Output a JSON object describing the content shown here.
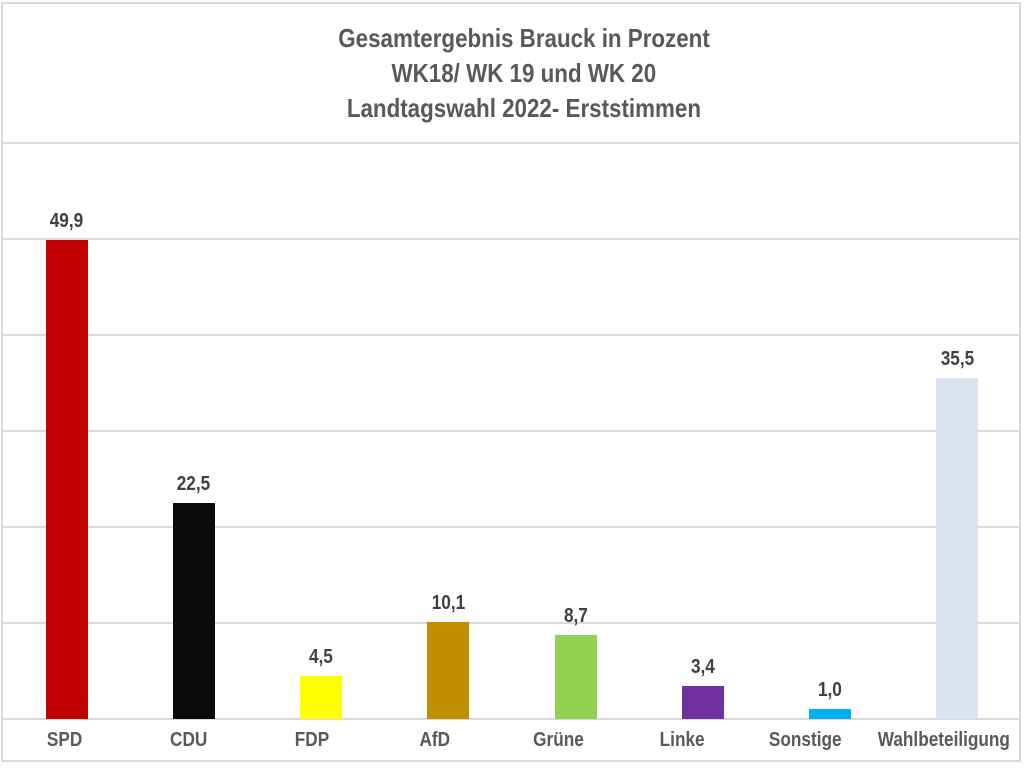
{
  "title": {
    "line1": "Gesamtergebnis Brauck in Prozent",
    "line2": "WK18/ WK 19 und WK 20",
    "line3": "Landtagswahl 2022- Erststimmen"
  },
  "chart_data": {
    "type": "bar",
    "title": "Gesamtergebnis Brauck in Prozent WK18/ WK 19 und WK 20 Landtagswahl 2022- Erststimmen",
    "categories": [
      "SPD",
      "CDU",
      "FDP",
      "AfD",
      "Grüne",
      "Linke",
      "Sonstige",
      "Wahlbeteiligung"
    ],
    "values": [
      49.9,
      22.5,
      4.5,
      10.1,
      8.7,
      3.4,
      1.0,
      35.5
    ],
    "value_labels": [
      "49,9",
      "22,5",
      "4,5",
      "10,1",
      "8,7",
      "3,4",
      "1,0",
      "35,5"
    ],
    "bar_colors": [
      "#C00000",
      "#0A0A0A",
      "#FFFF00",
      "#BF8F00",
      "#92D050",
      "#7030A0",
      "#00B0F0",
      "#DAE3F1"
    ],
    "xlabel": "",
    "ylabel": "",
    "ylim": [
      0,
      60
    ],
    "grid_step": 10,
    "grid": "on",
    "legend": "none",
    "y_axis_tick_labels": "none"
  },
  "styles": {
    "background": "#FFFFFF",
    "border_color": "#D9D9D9",
    "gridline_color": "#D9D9D9",
    "title_color": "#595959",
    "value_label_color": "#404040",
    "category_label_color": "#595959"
  }
}
